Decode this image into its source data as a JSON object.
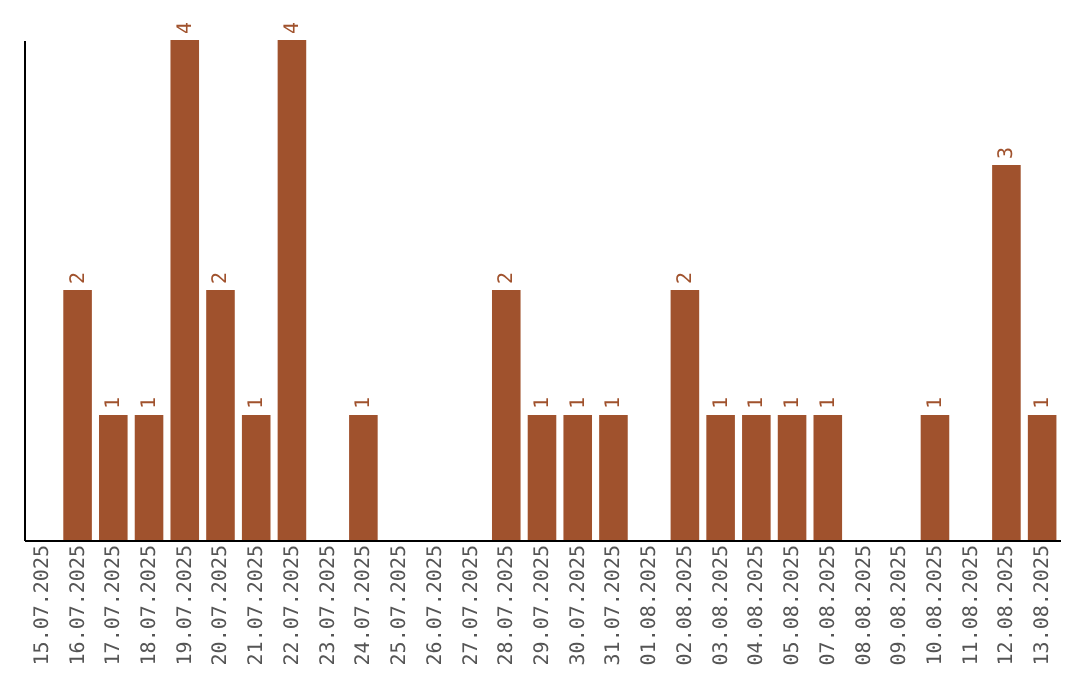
{
  "chart_data": {
    "type": "bar",
    "categories": [
      "15.07.2025",
      "16.07.2025",
      "17.07.2025",
      "18.07.2025",
      "19.07.2025",
      "20.07.2025",
      "21.07.2025",
      "22.07.2025",
      "23.07.2025",
      "24.07.2025",
      "25.07.2025",
      "26.07.2025",
      "27.07.2025",
      "28.07.2025",
      "29.07.2025",
      "30.07.2025",
      "31.07.2025",
      "01.08.2025",
      "02.08.2025",
      "03.08.2025",
      "04.08.2025",
      "05.08.2025",
      "07.08.2025",
      "08.08.2025",
      "09.08.2025",
      "10.08.2025",
      "11.08.2025",
      "12.08.2025",
      "13.08.2025"
    ],
    "values": [
      0,
      2,
      1,
      1,
      4,
      2,
      1,
      4,
      0,
      1,
      0,
      0,
      0,
      2,
      1,
      1,
      1,
      0,
      2,
      1,
      1,
      1,
      1,
      0,
      0,
      1,
      0,
      3,
      1
    ],
    "value_labels": [
      null,
      "2",
      "1",
      "1",
      "4",
      "2",
      "1",
      "4",
      null,
      "1",
      null,
      null,
      null,
      "2",
      "1",
      "1",
      "1",
      null,
      "2",
      "1",
      "1",
      "1",
      "1",
      null,
      null,
      "1",
      null,
      "3",
      "1"
    ],
    "color": "#a0522d",
    "tick_labels": "x",
    "grid": false
  }
}
